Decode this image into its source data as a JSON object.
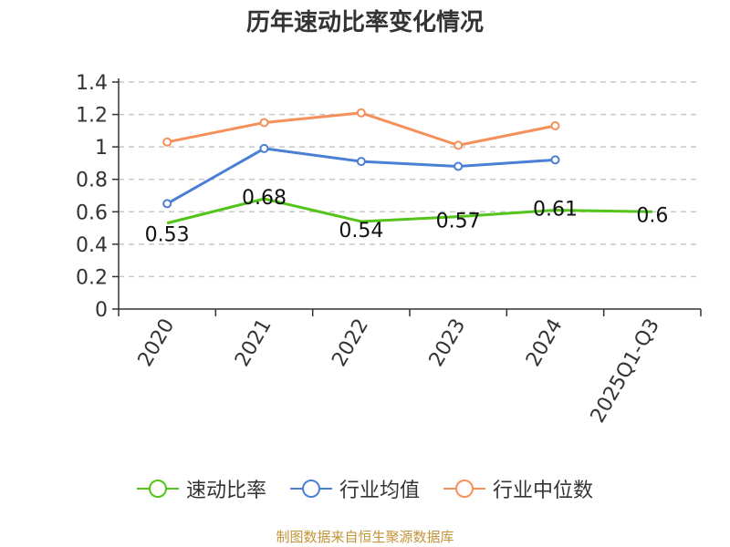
{
  "chart_data": {
    "type": "line",
    "title": "历年速动比率变化情况",
    "categories": [
      "2020",
      "2021",
      "2022",
      "2023",
      "2024",
      "2025Q1-Q3"
    ],
    "ylim": [
      0,
      1.4
    ],
    "yticks": [
      "0",
      "0.2",
      "0.4",
      "0.6",
      "0.8",
      "1",
      "1.2",
      "1.4"
    ],
    "grid": true,
    "legend_position": "bottom",
    "series": [
      {
        "name": "速动比率",
        "color": "#52c41a",
        "values": [
          0.53,
          0.68,
          0.54,
          0.57,
          0.61,
          0.6
        ],
        "labels": [
          "0.53",
          "0.68",
          "0.54",
          "0.57",
          "0.61",
          "0.6"
        ]
      },
      {
        "name": "行业均值",
        "color": "#4a7fd6",
        "values": [
          0.65,
          0.99,
          0.91,
          0.88,
          0.92,
          null
        ]
      },
      {
        "name": "行业中位数",
        "color": "#f5905a",
        "values": [
          1.03,
          1.15,
          1.21,
          1.01,
          1.13,
          null
        ]
      }
    ]
  },
  "source": "制图数据来自恒生聚源数据库"
}
